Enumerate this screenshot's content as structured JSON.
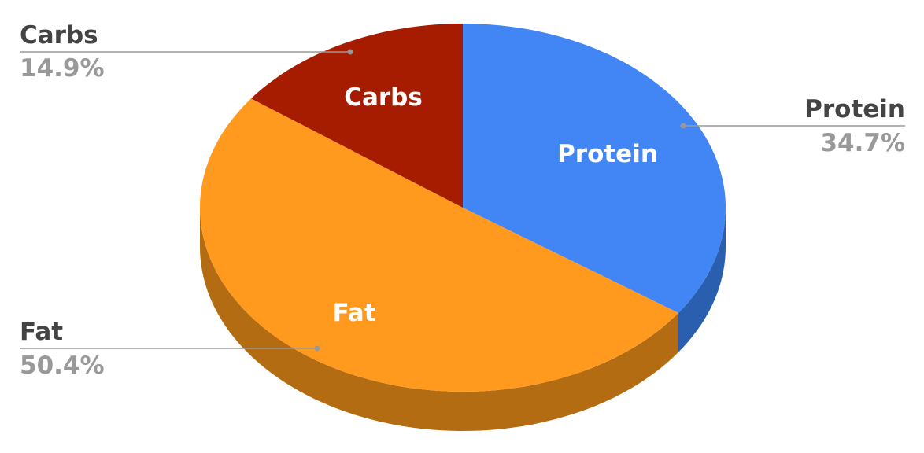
{
  "chart_data": {
    "type": "pie",
    "style": "3d",
    "start": "top, clockwise",
    "slices": [
      {
        "label": "Protein",
        "value": 34.7,
        "percent_label": "34.7%",
        "color": "#4285F4",
        "side_color": "#2A5EAE"
      },
      {
        "label": "Fat",
        "value": 50.4,
        "percent_label": "50.4%",
        "color": "#FF9A1F",
        "side_color": "#B46C12"
      },
      {
        "label": "Carbs",
        "value": 14.9,
        "percent_label": "14.9%",
        "color": "#A61C00",
        "side_color": "#6E1200"
      }
    ],
    "legend": "none",
    "label_colors": {
      "name": "#444444",
      "percent": "#999999",
      "inner": "#FFFFFF",
      "leader": "#999999"
    }
  }
}
